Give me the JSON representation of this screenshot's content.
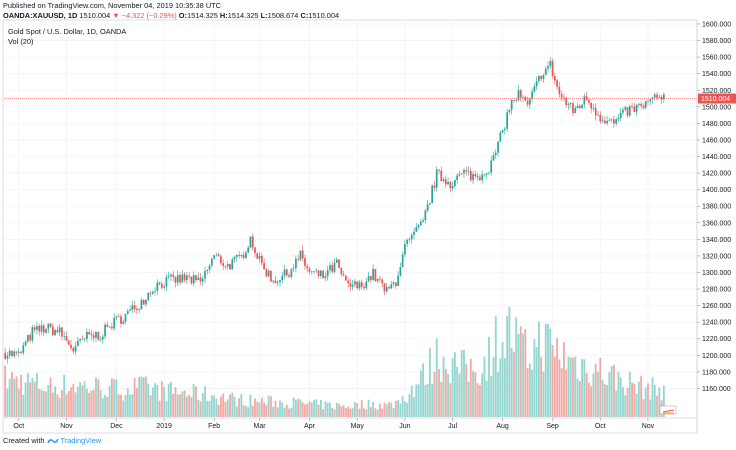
{
  "header": {
    "published": "Published on TradingView.com, November 04, 2019 10:35:38 UTC",
    "symbol": "OANDA:XAUUSD, 1D",
    "last": "1510.004",
    "change_arrow": "▼",
    "change": "−4.322 (−0.29%)",
    "o_label": "O:",
    "o_value": "1514.325",
    "h_label": "H:",
    "h_value": "1514.325",
    "l_label": "L:",
    "l_value": "1508.674",
    "c_label": "C:",
    "c_value": "1510.004"
  },
  "chart_title": "Gold Spot / U.S. Dollar, 1D, OANDA",
  "volume_label": "Vol (20)",
  "footer": {
    "created_with": "Created with",
    "brand": "TradingView"
  },
  "colors": {
    "up": "#26a69a",
    "down": "#ef5350",
    "up_vol": "#94d5cf",
    "down_vol": "#f5a7a2",
    "price_line": "#ef5350",
    "axis_text": "#131722",
    "grid": "#f0f3fa"
  },
  "chart_data": {
    "type": "candlestick",
    "symbol": "OANDA:XAUUSD",
    "interval": "1D",
    "ylim": [
      1140,
      1600
    ],
    "y_ticks": [
      1600,
      1580,
      1560,
      1540,
      1520,
      1500,
      1480,
      1460,
      1440,
      1420,
      1400,
      1380,
      1360,
      1340,
      1320,
      1300,
      1280,
      1260,
      1240,
      1220,
      1200,
      1180,
      1160
    ],
    "y_tick_labels": [
      "1600.000",
      "1580.000",
      "1560.000",
      "1540.000",
      "1520.000",
      "1500.000",
      "1480.000",
      "1460.000",
      "1440.000",
      "1420.000",
      "1400.000",
      "1380.000",
      "1360.000",
      "1340.000",
      "1320.000",
      "1300.000",
      "1280.000",
      "1260.000",
      "1240.000",
      "1220.000",
      "1200.000",
      "1180.000",
      "1160.000"
    ],
    "last_price": 1510.004,
    "last_price_label": "1510.004",
    "x_labels": [
      "Oct",
      "Nov",
      "Dec",
      "2019",
      "Feb",
      "Mar",
      "Apr",
      "May",
      "Jun",
      "Jul",
      "Aug",
      "Sep",
      "Oct",
      "Nov"
    ],
    "x_label_index": [
      6,
      27,
      49,
      70,
      92,
      112,
      134,
      155,
      176,
      197,
      219,
      241,
      262,
      283
    ],
    "price_path": [
      [
        0,
        1203
      ],
      [
        6,
        1200
      ],
      [
        12,
        1228
      ],
      [
        18,
        1233
      ],
      [
        24,
        1228
      ],
      [
        30,
        1207
      ],
      [
        36,
        1222
      ],
      [
        42,
        1225
      ],
      [
        48,
        1240
      ],
      [
        54,
        1250
      ],
      [
        60,
        1265
      ],
      [
        66,
        1284
      ],
      [
        72,
        1290
      ],
      [
        80,
        1293
      ],
      [
        86,
        1287
      ],
      [
        92,
        1320
      ],
      [
        98,
        1308
      ],
      [
        104,
        1318
      ],
      [
        108,
        1342
      ],
      [
        112,
        1313
      ],
      [
        118,
        1290
      ],
      [
        124,
        1298
      ],
      [
        130,
        1320
      ],
      [
        134,
        1300
      ],
      [
        140,
        1295
      ],
      [
        146,
        1310
      ],
      [
        150,
        1285
      ],
      [
        156,
        1283
      ],
      [
        162,
        1298
      ],
      [
        168,
        1276
      ],
      [
        172,
        1290
      ],
      [
        176,
        1330
      ],
      [
        180,
        1345
      ],
      [
        184,
        1360
      ],
      [
        190,
        1418
      ],
      [
        196,
        1408
      ],
      [
        202,
        1420
      ],
      [
        208,
        1415
      ],
      [
        214,
        1430
      ],
      [
        219,
        1470
      ],
      [
        222,
        1500
      ],
      [
        226,
        1515
      ],
      [
        230,
        1500
      ],
      [
        236,
        1540
      ],
      [
        240,
        1550
      ],
      [
        244,
        1515
      ],
      [
        250,
        1495
      ],
      [
        256,
        1510
      ],
      [
        262,
        1488
      ],
      [
        268,
        1480
      ],
      [
        274,
        1495
      ],
      [
        280,
        1500
      ],
      [
        286,
        1510
      ]
    ],
    "volume_ylim": [
      0,
      100
    ],
    "volume_profile": [
      [
        0,
        38
      ],
      [
        10,
        35
      ],
      [
        20,
        30
      ],
      [
        30,
        32
      ],
      [
        40,
        30
      ],
      [
        50,
        28
      ],
      [
        60,
        30
      ],
      [
        70,
        26
      ],
      [
        80,
        24
      ],
      [
        90,
        22
      ],
      [
        100,
        18
      ],
      [
        110,
        16
      ],
      [
        120,
        15
      ],
      [
        130,
        14
      ],
      [
        140,
        12
      ],
      [
        150,
        11
      ],
      [
        160,
        13
      ],
      [
        170,
        12
      ],
      [
        176,
        20
      ],
      [
        184,
        40
      ],
      [
        190,
        60
      ],
      [
        196,
        55
      ],
      [
        200,
        48
      ],
      [
        210,
        50
      ],
      [
        216,
        75
      ],
      [
        222,
        85
      ],
      [
        230,
        60
      ],
      [
        236,
        78
      ],
      [
        240,
        70
      ],
      [
        250,
        55
      ],
      [
        260,
        48
      ],
      [
        270,
        38
      ],
      [
        280,
        30
      ],
      [
        286,
        28
      ]
    ]
  }
}
